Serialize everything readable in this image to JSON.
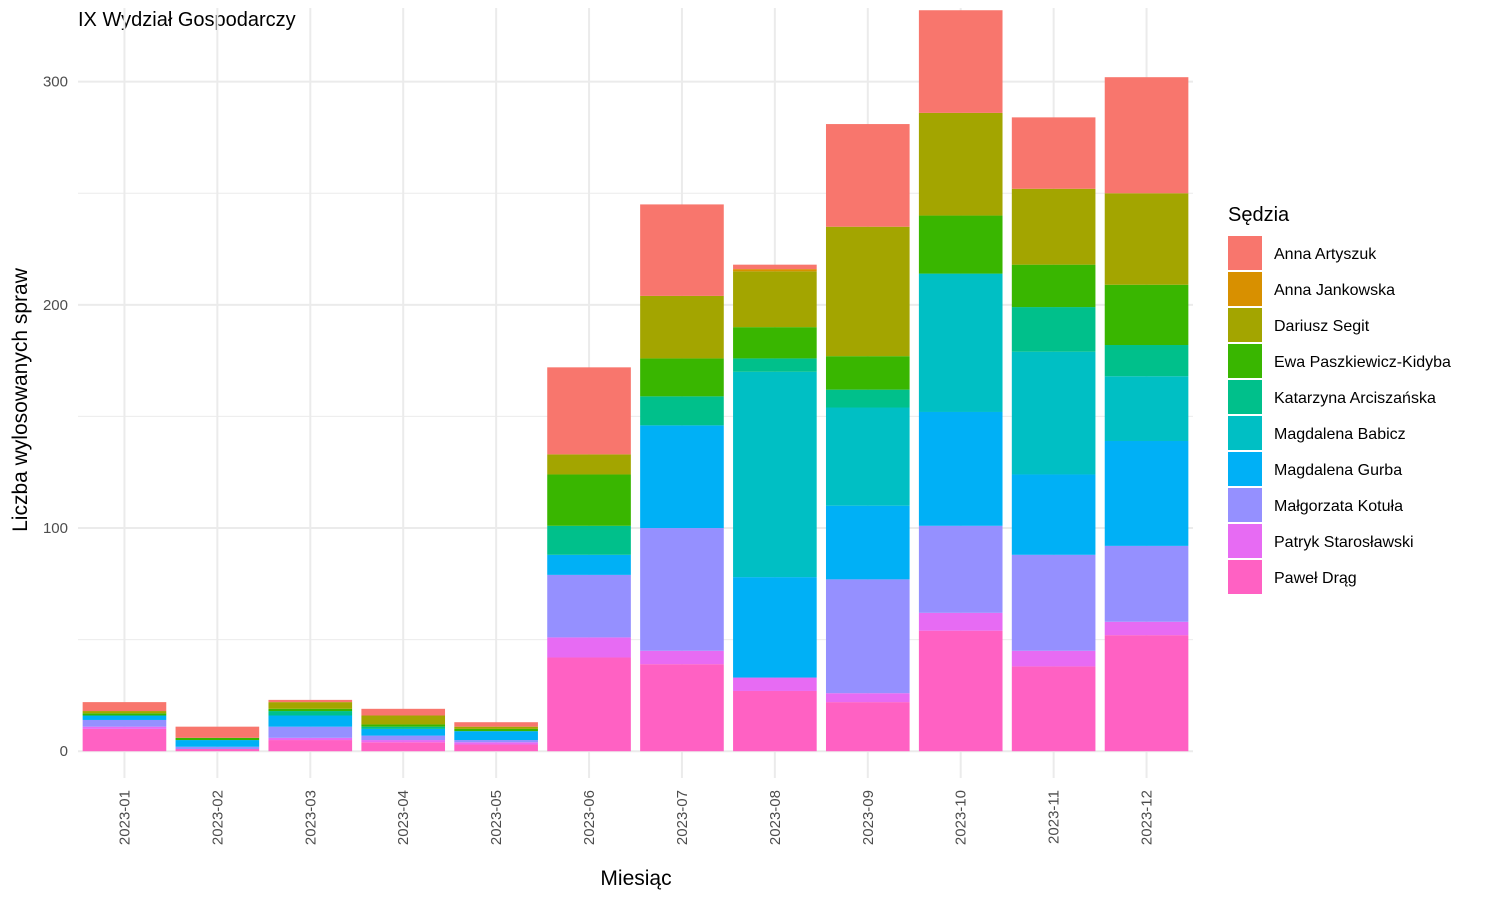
{
  "chart_data": {
    "type": "bar",
    "stacked": true,
    "title": "IX Wydział Gospodarczy",
    "xlabel": "Miesiąc",
    "ylabel": "Liczba wylosowanych spraw",
    "ylim": [
      -12,
      333
    ],
    "yticks": [
      0,
      100,
      200,
      300
    ],
    "grid": true,
    "legend_title": "Sędzia",
    "legend_position": "right",
    "categories": [
      "2023-01",
      "2023-02",
      "2023-03",
      "2023-04",
      "2023-05",
      "2023-06",
      "2023-07",
      "2023-08",
      "2023-09",
      "2023-10",
      "2023-11",
      "2023-12"
    ],
    "series": [
      {
        "name": "Paweł Drąg",
        "color": "#FF61C3",
        "values": [
          10,
          1,
          5,
          4,
          3,
          42,
          39,
          27,
          22,
          54,
          38,
          52
        ]
      },
      {
        "name": "Patryk Starosławski",
        "color": "#E76BF3",
        "values": [
          1,
          0,
          1,
          1,
          1,
          9,
          6,
          6,
          4,
          8,
          7,
          6
        ]
      },
      {
        "name": "Małgorzata Kotuła",
        "color": "#9590FF",
        "values": [
          3,
          1,
          5,
          2,
          1,
          28,
          55,
          0,
          51,
          39,
          43,
          34
        ]
      },
      {
        "name": "Magdalena Gurba",
        "color": "#00B0F6",
        "values": [
          2,
          3,
          5,
          3,
          4,
          9,
          46,
          45,
          33,
          51,
          36,
          47
        ]
      },
      {
        "name": "Magdalena Babicz",
        "color": "#00BFC4",
        "values": [
          0,
          0,
          0,
          0,
          0,
          0,
          0,
          92,
          44,
          62,
          55,
          29
        ]
      },
      {
        "name": "Katarzyna Arciszańska",
        "color": "#00C08B",
        "values": [
          0,
          0,
          2,
          1,
          0,
          13,
          13,
          6,
          8,
          0,
          20,
          14
        ]
      },
      {
        "name": "Ewa Paszkiewicz-Kidyba",
        "color": "#39B600",
        "values": [
          1,
          1,
          1,
          1,
          1,
          23,
          17,
          14,
          15,
          26,
          19,
          27
        ]
      },
      {
        "name": "Dariusz Segit",
        "color": "#A3A500",
        "values": [
          1,
          0,
          3,
          4,
          1,
          9,
          28,
          25,
          58,
          46,
          34,
          41
        ]
      },
      {
        "name": "Anna Jankowska",
        "color": "#D89000",
        "values": [
          0,
          0,
          0,
          0,
          0,
          0,
          0,
          1,
          0,
          0,
          0,
          0
        ]
      },
      {
        "name": "Anna Artyszuk",
        "color": "#F8766D",
        "values": [
          4,
          5,
          1,
          3,
          2,
          39,
          41,
          2,
          46,
          46,
          32,
          52
        ]
      }
    ]
  }
}
